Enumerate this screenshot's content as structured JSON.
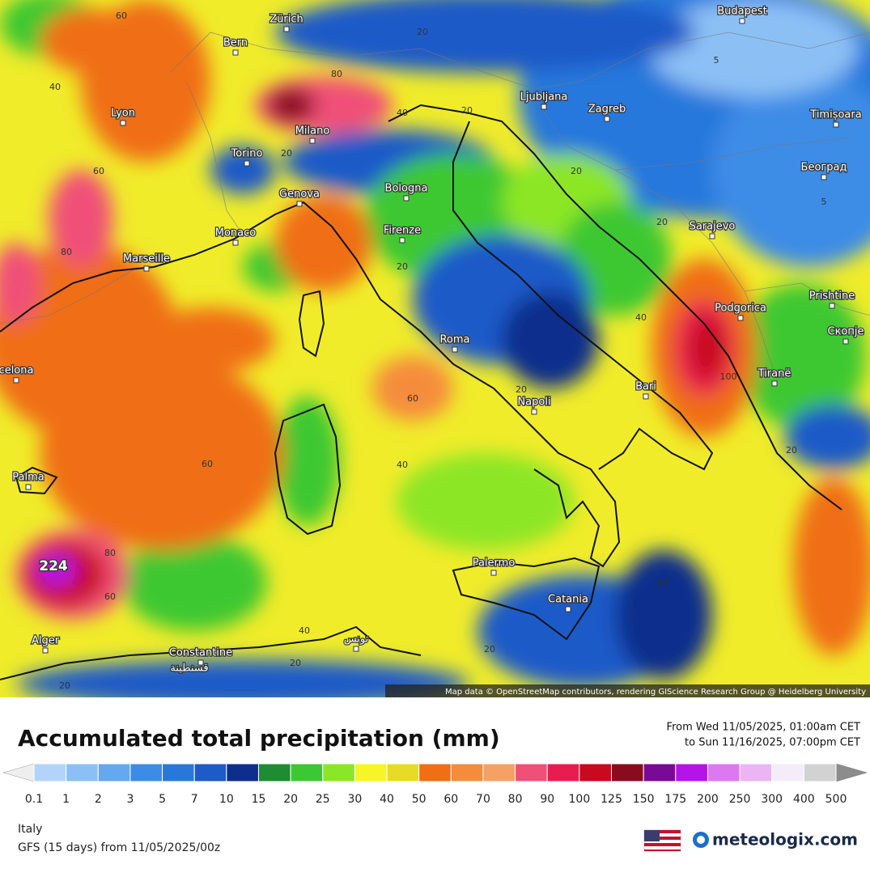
{
  "map": {
    "attribution": "Map data © OpenStreetMap contributors, rendering GIScience Research Group @ Heidelberg University",
    "max_label": "224",
    "cities": [
      "Zürich",
      "Budapest",
      "Bern",
      "Lyon",
      "Milano",
      "Torino",
      "Ljubljana",
      "Zagreb",
      "Timișoara",
      "Београд",
      "Genova",
      "Bologna",
      "Monaco",
      "Firenze",
      "Sarajevo",
      "Marseille",
      "Podgorica",
      "Prishtine",
      "Roma",
      "Скопје",
      "celona",
      "Tiranë",
      "Bari",
      "Napoli",
      "Palma",
      "Palermo",
      "Catania",
      "Alger",
      "Constantine",
      "قسنطينة",
      "تونس"
    ],
    "contour_labels": [
      "60",
      "40",
      "60",
      "80",
      "80",
      "20",
      "40",
      "20",
      "20",
      "20",
      "20",
      "5",
      "5",
      "20",
      "40",
      "100",
      "60",
      "20",
      "40",
      "60",
      "80",
      "60",
      "40",
      "20",
      "20",
      "20",
      "20",
      "20"
    ]
  },
  "legend": {
    "title": "Accumulated total precipitation (mm)",
    "period": [
      "From Wed 11/05/2025, 01:00am CET",
      "to Sun 11/16/2025, 07:00pm CET"
    ],
    "ticks": [
      "0.1",
      "1",
      "2",
      "3",
      "5",
      "7",
      "10",
      "15",
      "20",
      "25",
      "30",
      "40",
      "50",
      "60",
      "70",
      "80",
      "90",
      "100",
      "125",
      "150",
      "175",
      "200",
      "250",
      "300",
      "400",
      "500"
    ],
    "colors": [
      "#dde3f2",
      "#b3d4fa",
      "#8cc0f5",
      "#64a8f0",
      "#3c8ce6",
      "#2878dc",
      "#1e5ac8",
      "#0f2d8c",
      "#1e8c32",
      "#3cc832",
      "#8ce628",
      "#f5f528",
      "#e6dc28",
      "#f06e14",
      "#f58c3c",
      "#f5a064",
      "#f05078",
      "#e61e50",
      "#c80a1e",
      "#8c0a1e",
      "#780a96",
      "#b414e6",
      "#dc78f0",
      "#ebb4f5",
      "#f5ecfa",
      "#d2d2d2"
    ],
    "arrow_colors": [
      "#eeeeee",
      "#8c8c8c"
    ]
  },
  "footer": {
    "region": "Italy",
    "model": "GFS (15 days) from 11/05/2025/00z",
    "brand": "meteologix.com"
  }
}
